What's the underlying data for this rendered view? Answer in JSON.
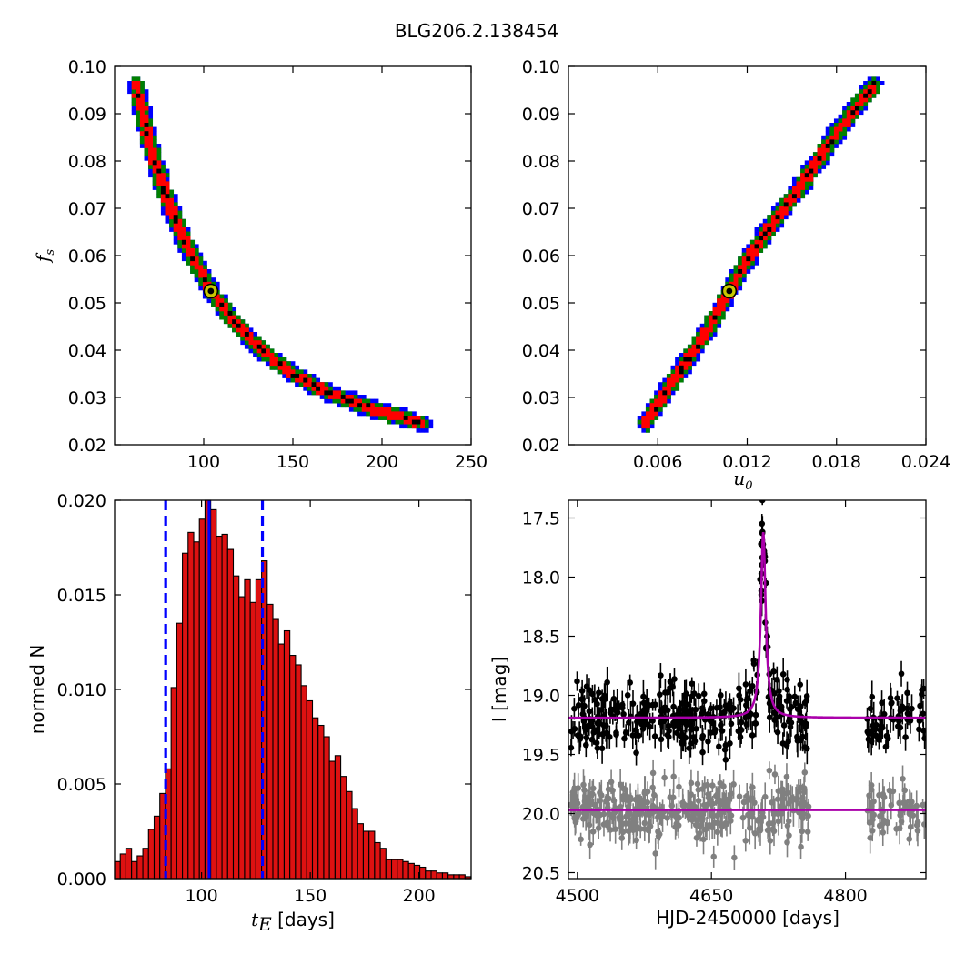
{
  "figure_title": "BLG206.2.138454",
  "colors": {
    "contour_outer": "#0000ff",
    "contour_mid": "#008000",
    "contour_inner": "#ff0000",
    "contour_core": "#000000",
    "best_fit_marker": "#c8c800",
    "hist_bar": "#dd1111",
    "hist_lines": "#0000ff",
    "model_curve": "#aa00aa",
    "data_main": "#000000",
    "data_residual": "#808080"
  },
  "chart_data": [
    {
      "id": "fs_vs_tE",
      "type": "heatmap",
      "xlim": [
        50,
        250
      ],
      "ylim": [
        0.02,
        0.1
      ],
      "xticks": [
        "100",
        "150",
        "200",
        "250"
      ],
      "yticks": [
        "0.02",
        "0.03",
        "0.04",
        "0.05",
        "0.06",
        "0.07",
        "0.08",
        "0.09",
        "0.10"
      ],
      "xlabel": "",
      "ylabel": "f_s",
      "ylabel_main": "f",
      "ylabel_sub": "s",
      "ridge_x": [
        62,
        70,
        80,
        92,
        104,
        118,
        134,
        150,
        170,
        195,
        223
      ],
      "ridge_y": [
        0.096,
        0.083,
        0.071,
        0.061,
        0.0525,
        0.0455,
        0.0395,
        0.035,
        0.031,
        0.0275,
        0.0245
      ],
      "best_fit": {
        "x": 104,
        "y": 0.0525
      },
      "grid": false
    },
    {
      "id": "fs_vs_u0",
      "type": "heatmap",
      "xlim": [
        0,
        0.024
      ],
      "ylim": [
        0.02,
        0.1
      ],
      "xticks": [
        "0.006",
        "0.012",
        "0.018",
        "0.024"
      ],
      "yticks": [
        "0.02",
        "0.03",
        "0.04",
        "0.05",
        "0.06",
        "0.07",
        "0.08",
        "0.09",
        "0.10"
      ],
      "xlabel": "u_0",
      "xlabel_main": "u",
      "xlabel_sub": "0",
      "ylabel": "",
      "ridge_x": [
        0.0052,
        0.0065,
        0.008,
        0.0095,
        0.0108,
        0.012,
        0.0135,
        0.015,
        0.0165,
        0.018,
        0.0205
      ],
      "ridge_y": [
        0.0245,
        0.031,
        0.038,
        0.045,
        0.0525,
        0.059,
        0.066,
        0.072,
        0.079,
        0.086,
        0.096
      ],
      "best_fit": {
        "x": 0.0108,
        "y": 0.0525
      },
      "grid": false
    },
    {
      "id": "tE_histogram",
      "type": "bar",
      "xlim": [
        60,
        224
      ],
      "ylim": [
        0,
        0.02
      ],
      "xticks": [
        "100",
        "150",
        "200"
      ],
      "yticks": [
        "0.000",
        "0.005",
        "0.010",
        "0.015",
        "0.020"
      ],
      "xlabel_main": "t",
      "xlabel_sub": "E",
      "xlabel_rest": " [days]",
      "ylabel": "normed N",
      "bin_start": 60,
      "bin_width": 2.6,
      "values": [
        0.0009,
        0.0013,
        0.0016,
        0.0009,
        0.0012,
        0.0016,
        0.0026,
        0.0033,
        0.0045,
        0.0058,
        0.0101,
        0.0135,
        0.0172,
        0.0183,
        0.0178,
        0.019,
        0.0201,
        0.0195,
        0.0181,
        0.0182,
        0.0174,
        0.016,
        0.0149,
        0.0158,
        0.0146,
        0.0158,
        0.0168,
        0.0145,
        0.0137,
        0.0124,
        0.0131,
        0.0118,
        0.0113,
        0.0102,
        0.0094,
        0.0085,
        0.0081,
        0.0075,
        0.0062,
        0.0065,
        0.0054,
        0.0046,
        0.0037,
        0.0029,
        0.0025,
        0.0025,
        0.0019,
        0.0016,
        0.001,
        0.001,
        0.001,
        0.0009,
        0.0008,
        0.0007,
        0.0006,
        0.0004,
        0.0004,
        0.0003,
        0.0003,
        0.0002,
        0.0002,
        0.0002,
        0.0001,
        0.0001,
        0.0001,
        0.0001,
        0.0001,
        0.0001,
        0.0001,
        0.0001
      ],
      "vlines": [
        {
          "x": 103.5,
          "style": "solid"
        },
        {
          "x": 83.5,
          "style": "dashed"
        },
        {
          "x": 128,
          "style": "dashed"
        }
      ],
      "grid": false
    },
    {
      "id": "light_curve",
      "type": "scatter",
      "xlim": [
        4490,
        4890
      ],
      "ylim": [
        20.55,
        17.35
      ],
      "xticks": [
        "4500",
        "4650",
        "4800"
      ],
      "yticks": [
        "17.5",
        "18.0",
        "18.5",
        "19.0",
        "19.5",
        "20.0",
        "20.5"
      ],
      "xlabel": "HJD-2450000 [days]",
      "ylabel": "I [mag]",
      "model": {
        "t0": 4708,
        "baseline": 19.19,
        "peak": 17.62,
        "width": 3.2
      },
      "residual_baseline": 19.97,
      "point_groups": [
        {
          "t_start": 4492,
          "t_end": 4760,
          "count": 330,
          "scatter": 0.14
        },
        {
          "t_start": 4823,
          "t_end": 4890,
          "count": 55,
          "scatter": 0.14
        }
      ],
      "peak_points": [
        {
          "t": 4705.5,
          "mag": 17.72
        },
        {
          "t": 4707,
          "mag": 17.35
        },
        {
          "t": 4709,
          "mag": 17.78
        },
        {
          "t": 4704.5,
          "mag": 18.02
        },
        {
          "t": 4711,
          "mag": 18.05
        },
        {
          "t": 4712.5,
          "mag": 18.5
        }
      ],
      "grid": false
    }
  ]
}
